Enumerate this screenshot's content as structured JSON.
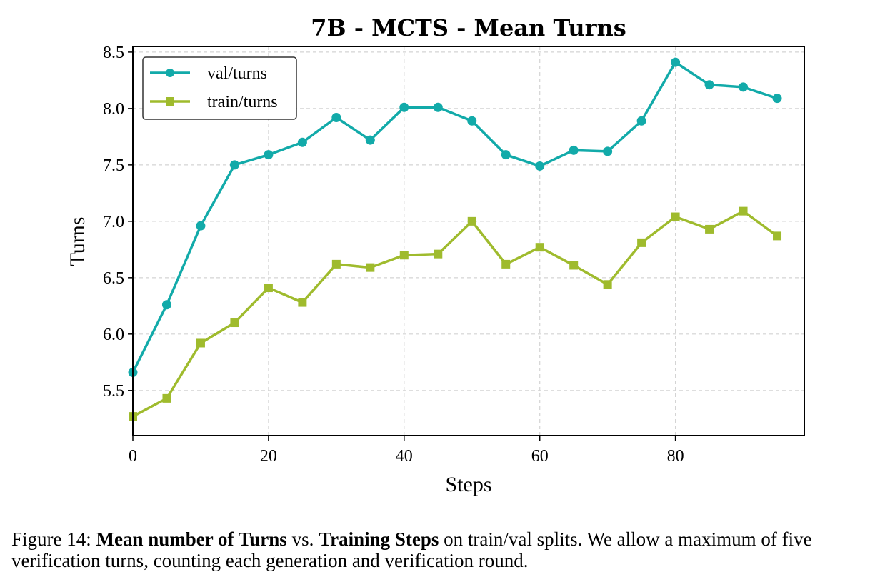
{
  "chart_data": {
    "type": "line",
    "title": "7B - MCTS - Mean Turns",
    "xlabel": "Steps",
    "ylabel": "Turns",
    "xlim": [
      0,
      99
    ],
    "ylim": [
      5.1,
      8.55
    ],
    "xticks": [
      0,
      20,
      40,
      60,
      80
    ],
    "yticks": [
      5.5,
      6.0,
      6.5,
      7.0,
      7.5,
      8.0,
      8.5
    ],
    "xtick_labels": [
      "0",
      "20",
      "40",
      "60",
      "80"
    ],
    "ytick_labels": [
      "5.5",
      "6.0",
      "6.5",
      "7.0",
      "7.5",
      "8.0",
      "8.5"
    ],
    "grid": true,
    "legend_position": "top-left",
    "x": [
      0,
      5,
      10,
      15,
      20,
      25,
      30,
      35,
      40,
      45,
      50,
      55,
      60,
      65,
      70,
      75,
      80,
      85,
      90,
      95
    ],
    "series": [
      {
        "name": "val/turns",
        "color": "#12AAA9",
        "marker": "circle",
        "values": [
          5.66,
          6.26,
          6.96,
          7.5,
          7.59,
          7.7,
          7.92,
          7.72,
          8.01,
          8.01,
          7.89,
          7.59,
          7.49,
          7.63,
          7.62,
          7.89,
          8.41,
          8.21,
          8.19,
          8.09
        ]
      },
      {
        "name": "train/turns",
        "color": "#9FBB2D",
        "marker": "square",
        "values": [
          5.27,
          5.43,
          5.92,
          6.1,
          6.41,
          6.28,
          6.62,
          6.59,
          6.7,
          6.71,
          7.0,
          6.62,
          6.77,
          6.61,
          6.44,
          6.81,
          7.04,
          6.93,
          7.09,
          6.87
        ]
      }
    ]
  },
  "caption": {
    "prefix": "Figure 14: ",
    "bold1": "Mean number of Turns",
    "middle": " vs. ",
    "bold2": "Training Steps",
    "rest": " on train/val splits. We allow a maximum of five verification turns, counting each generation and verification round."
  }
}
